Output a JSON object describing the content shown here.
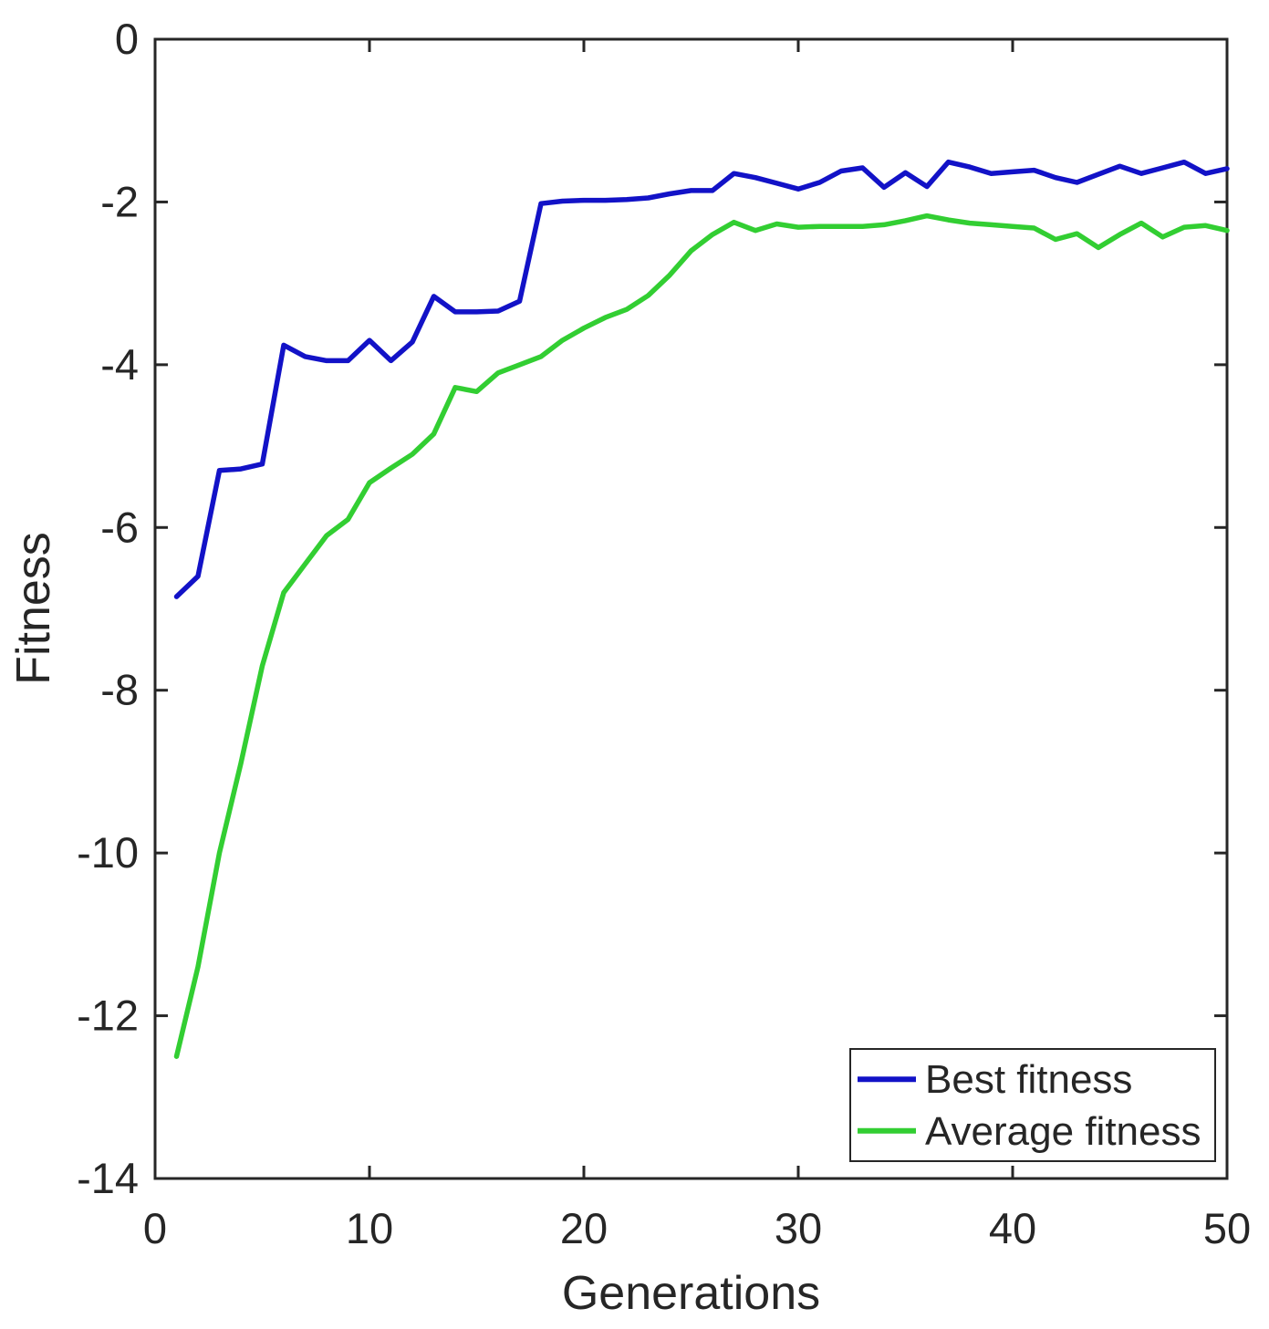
{
  "chart_data": {
    "type": "line",
    "title": "",
    "xlabel": "Generations",
    "ylabel": "Fitness",
    "xlim": [
      0,
      50
    ],
    "ylim": [
      -14,
      0
    ],
    "x_ticks": [
      0,
      10,
      20,
      30,
      40,
      50
    ],
    "y_ticks": [
      0,
      -2,
      -4,
      -6,
      -8,
      -10,
      -12,
      -14
    ],
    "grid": false,
    "legend_position": "bottom-right",
    "x": [
      1,
      2,
      3,
      4,
      5,
      6,
      7,
      8,
      9,
      10,
      11,
      12,
      13,
      14,
      15,
      16,
      17,
      18,
      19,
      20,
      21,
      22,
      23,
      24,
      25,
      26,
      27,
      28,
      29,
      30,
      31,
      32,
      33,
      34,
      35,
      36,
      37,
      38,
      39,
      40,
      41,
      42,
      43,
      44,
      45,
      46,
      47,
      48,
      49,
      50
    ],
    "series": [
      {
        "name": "Best fitness",
        "color": "#1212C7",
        "values": [
          -6.85,
          -6.6,
          -5.3,
          -5.28,
          -5.22,
          -3.76,
          -3.9,
          -3.95,
          -3.95,
          -3.7,
          -3.95,
          -3.72,
          -3.16,
          -3.35,
          -3.35,
          -3.34,
          -3.22,
          -2.02,
          -1.99,
          -1.98,
          -1.98,
          -1.97,
          -1.95,
          -1.9,
          -1.86,
          -1.86,
          -1.65,
          -1.7,
          -1.77,
          -1.84,
          -1.76,
          -1.62,
          -1.58,
          -1.82,
          -1.64,
          -1.81,
          -1.51,
          -1.57,
          -1.65,
          -1.63,
          -1.61,
          -1.7,
          -1.76,
          -1.66,
          -1.56,
          -1.65,
          -1.58,
          -1.51,
          -1.65,
          -1.59
        ]
      },
      {
        "name": "Average fitness",
        "color": "#32CE32",
        "values": [
          -12.5,
          -11.4,
          -10.0,
          -8.9,
          -7.7,
          -6.8,
          -6.45,
          -6.1,
          -5.9,
          -5.45,
          -5.27,
          -5.1,
          -4.85,
          -4.28,
          -4.33,
          -4.1,
          -4.0,
          -3.9,
          -3.7,
          -3.55,
          -3.42,
          -3.32,
          -3.15,
          -2.9,
          -2.6,
          -2.4,
          -2.25,
          -2.35,
          -2.27,
          -2.31,
          -2.3,
          -2.3,
          -2.3,
          -2.28,
          -2.23,
          -2.17,
          -2.22,
          -2.26,
          -2.28,
          -2.3,
          -2.32,
          -2.46,
          -2.39,
          -2.56,
          -2.4,
          -2.26,
          -2.43,
          -2.31,
          -2.29,
          -2.35
        ]
      }
    ],
    "axis_color": "#262626",
    "tick_label_color": "#262626",
    "background_color": "#ffffff"
  }
}
